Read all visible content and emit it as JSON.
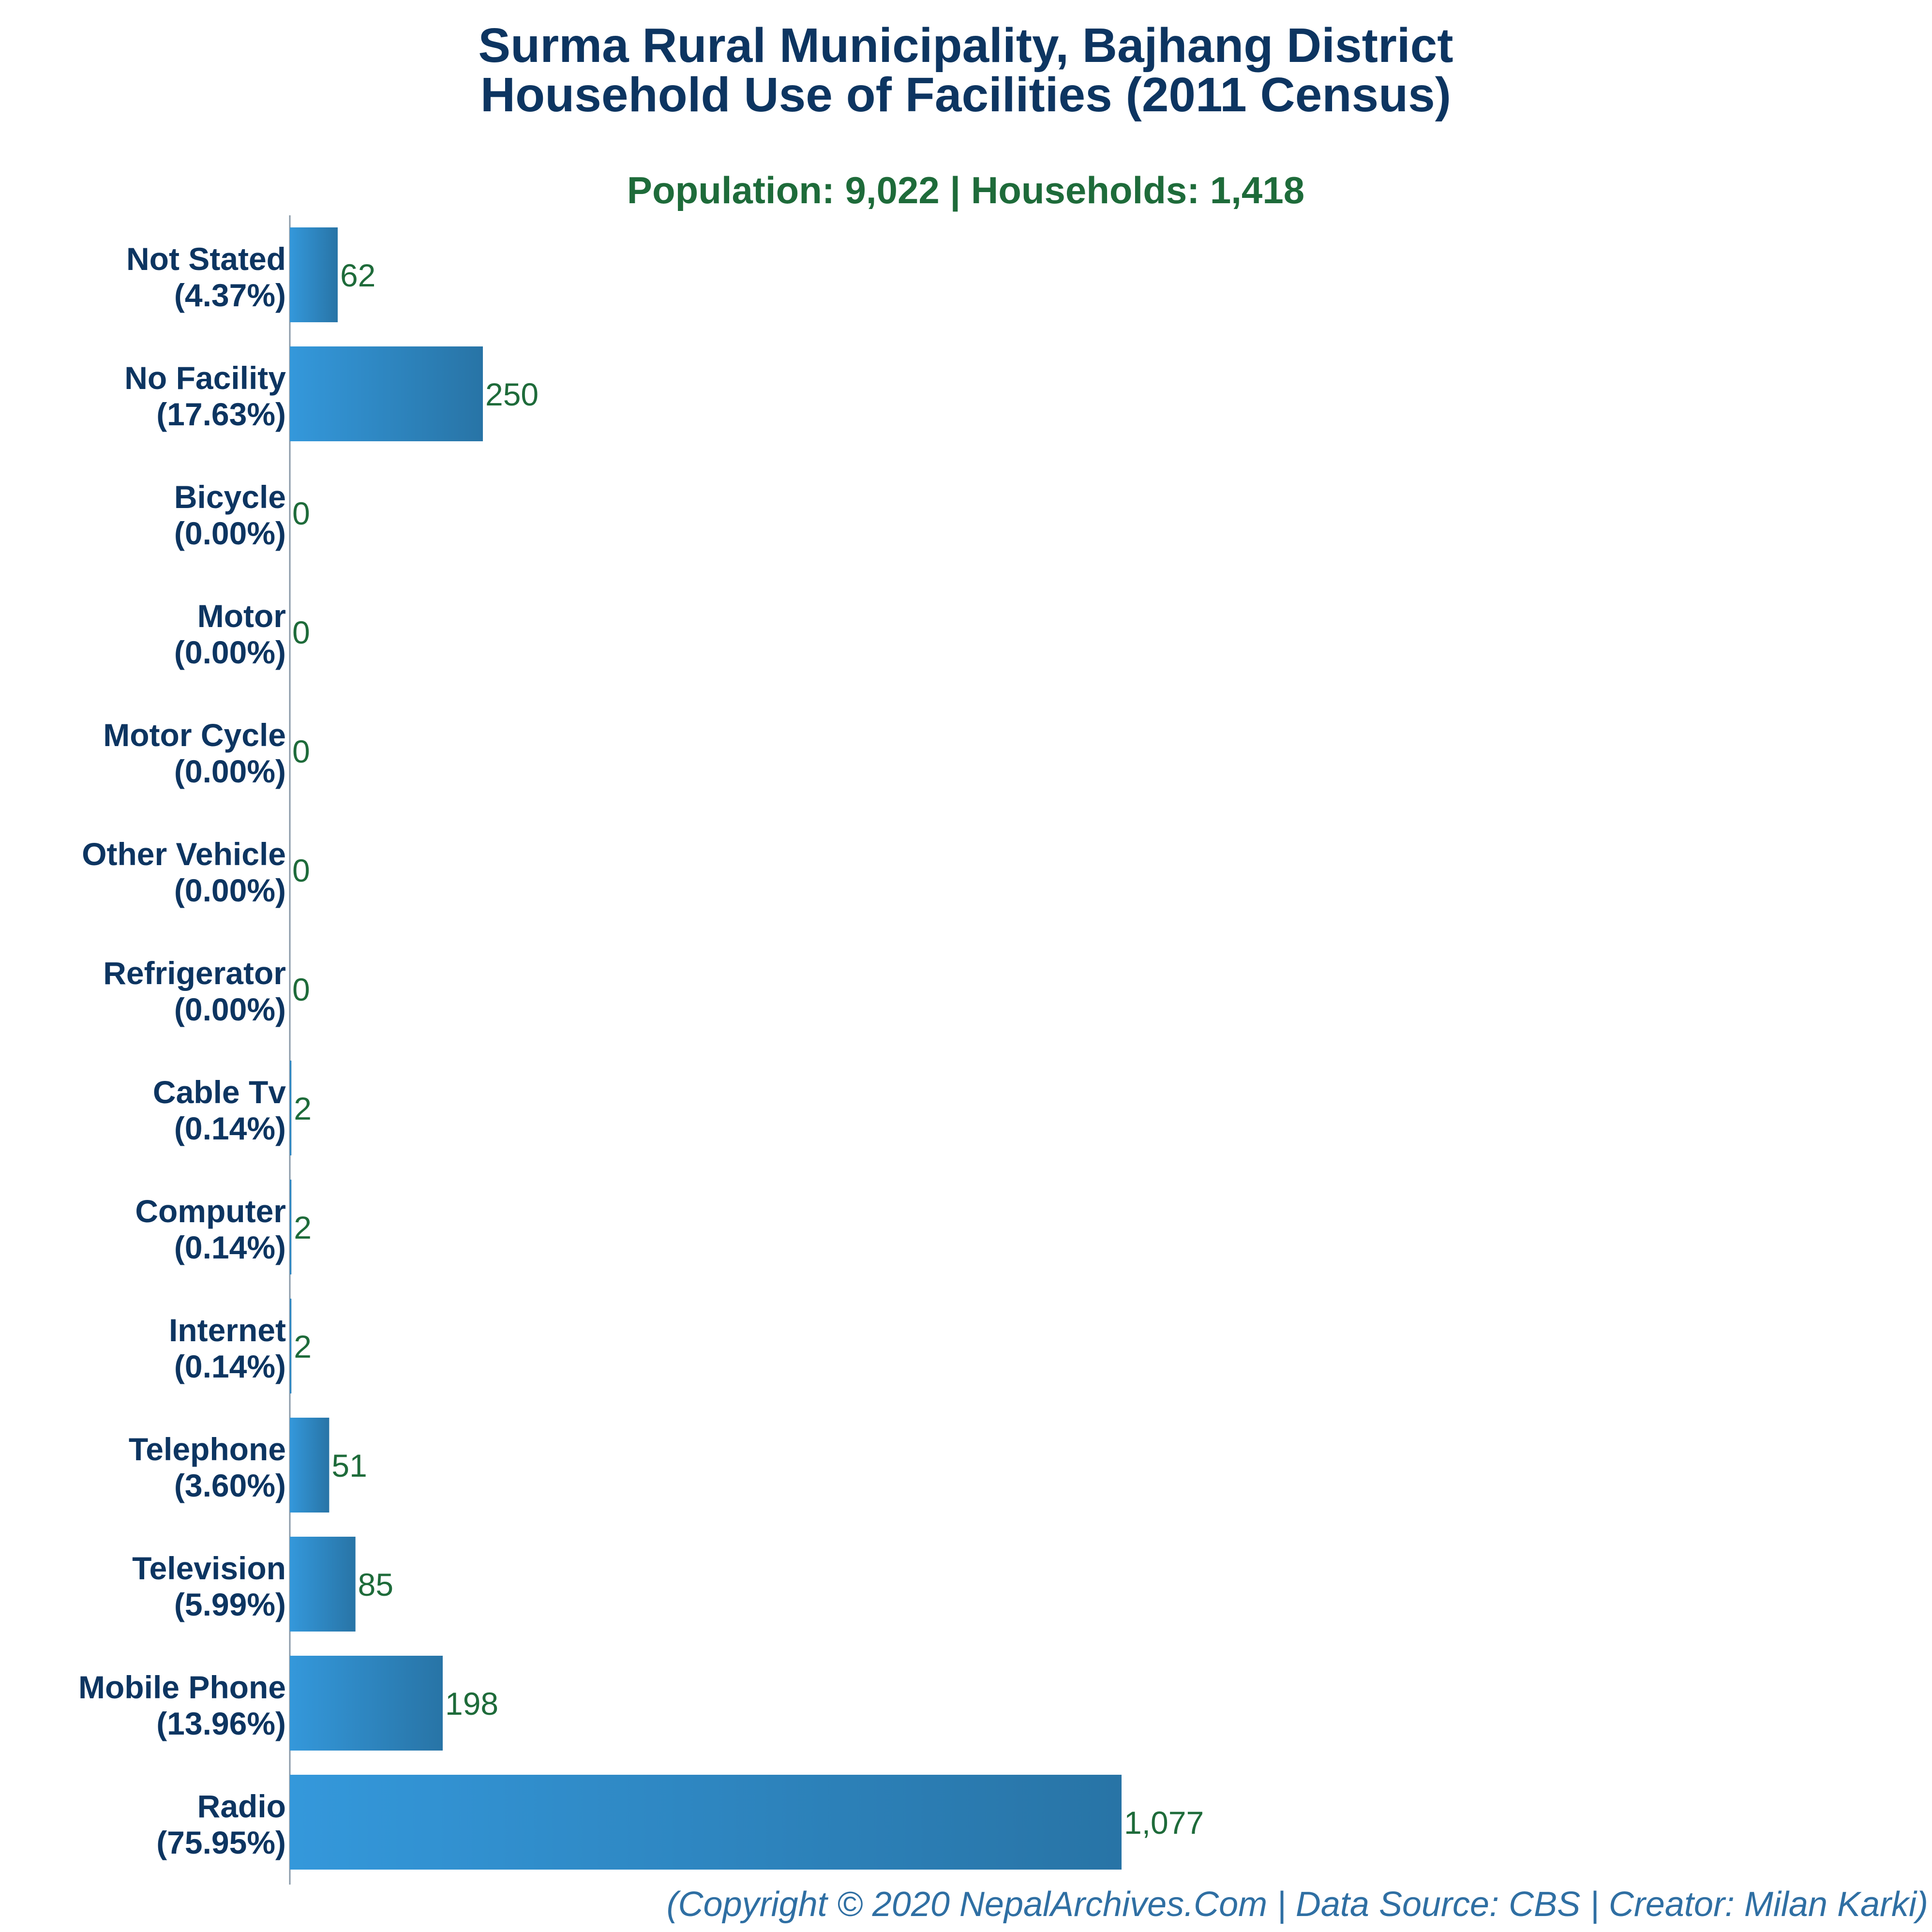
{
  "chart_data": {
    "type": "bar",
    "orientation": "horizontal",
    "title_line1": "Surma Rural Municipality, Bajhang District",
    "title_line2": "Household Use of Facilities (2011 Census)",
    "subtitle": "Population: 9,022 | Households: 1,418",
    "categories": [
      "Not Stated",
      "No Facility",
      "Bicycle",
      "Motor",
      "Motor Cycle",
      "Other Vehicle",
      "Refrigerator",
      "Cable Tv",
      "Computer",
      "Internet",
      "Telephone",
      "Television",
      "Mobile Phone",
      "Radio"
    ],
    "percents": [
      "(4.37%)",
      "(17.63%)",
      "(0.00%)",
      "(0.00%)",
      "(0.00%)",
      "(0.00%)",
      "(0.00%)",
      "(0.14%)",
      "(0.14%)",
      "(0.14%)",
      "(3.60%)",
      "(5.99%)",
      "(13.96%)",
      "(75.95%)"
    ],
    "values": [
      62,
      250,
      0,
      0,
      0,
      0,
      0,
      2,
      2,
      2,
      51,
      85,
      198,
      1077
    ],
    "value_labels": [
      "62",
      "250",
      "0",
      "0",
      "0",
      "0",
      "0",
      "2",
      "2",
      "2",
      "51",
      "85",
      "198",
      "1,077"
    ],
    "xlim": [
      0,
      1077
    ],
    "grid": false,
    "bar_color_start": "#3498db",
    "bar_color_end": "#2874a6"
  },
  "footer": "(Copyright © 2020 NepalArchives.Com | Data Source: CBS | Creator: Milan Karki)"
}
